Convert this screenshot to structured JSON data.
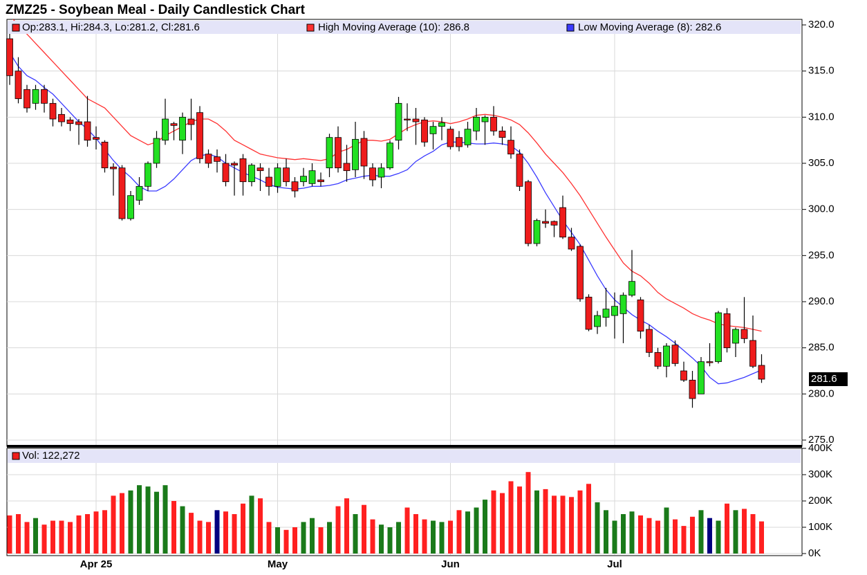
{
  "chart_data": [
    {
      "type": "candlestick",
      "title": "ZMZ25 - Soybean Meal - Daily Candlestick Chart",
      "ohlc_label": "Op:283.1, Hi:284.3, Lo:281.2, Cl:281.6",
      "last_price_label": "281.6",
      "up_color": "#22e022",
      "down_color": "#ee1c1c",
      "open": [
        318.5,
        315,
        313,
        311.5,
        313,
        311.5,
        310.3,
        309.7,
        309.5,
        309.5,
        307.8,
        307.3,
        304.6,
        304.5,
        299,
        301,
        302.5,
        305,
        307.5,
        309.3,
        307.5,
        309.8,
        310.5,
        306,
        305.7,
        305,
        305,
        305.5,
        303,
        304.5,
        303.5,
        302.5,
        304.5,
        303,
        303,
        302.8,
        303.2,
        304.5,
        307.8,
        305,
        304.3,
        307.7,
        304.5,
        303.5,
        304.5,
        307.5,
        309.8,
        309.8,
        309.7,
        308.2,
        309,
        308.7,
        307.8,
        307,
        308.5,
        309.5,
        310,
        308.5,
        307.5,
        306,
        303,
        296.3,
        298.7,
        298.7,
        300.2,
        297,
        296,
        290.5,
        287.3,
        288.3,
        288.5,
        288.7,
        290.7,
        290.2,
        287,
        284.5,
        283,
        285.3,
        282.5,
        281.5,
        280,
        283.5,
        283.5,
        288.7,
        285.5,
        287,
        285.8,
        283.1
      ],
      "high": [
        320.2,
        316.5,
        313.5,
        313.5,
        313.5,
        312,
        311,
        310,
        309.8,
        312.3,
        309,
        307.5,
        305,
        304.8,
        302,
        303.5,
        305.2,
        308.5,
        312,
        309.5,
        310.5,
        312,
        311.2,
        306.5,
        306.5,
        306,
        305.2,
        306,
        305,
        305,
        304.5,
        305,
        305.5,
        303.5,
        304.5,
        305,
        304,
        308.2,
        309,
        307,
        309.5,
        308.5,
        305,
        305,
        307.5,
        312.2,
        311.5,
        311,
        310,
        309.5,
        310,
        309,
        308.5,
        309.5,
        311,
        310.2,
        311.2,
        309,
        309,
        306.5,
        303.2,
        299,
        300,
        298.8,
        301.5,
        298,
        296.2,
        290.8,
        289,
        291.5,
        291,
        291,
        295.6,
        290.5,
        287.5,
        285,
        285.5,
        285.8,
        283.5,
        282.5,
        284,
        285.5,
        289,
        289.3,
        287.2,
        290.5,
        288.5,
        284.3
      ],
      "low": [
        313.5,
        311.5,
        310.5,
        310.8,
        310.5,
        309,
        309,
        308.5,
        307,
        306.8,
        306.5,
        304,
        301.5,
        298.8,
        298.8,
        300.5,
        302,
        304.5,
        307,
        307.5,
        306,
        307.5,
        305,
        304.5,
        304,
        302.5,
        301.5,
        301.5,
        302.5,
        302,
        301.5,
        301.8,
        302.5,
        301.3,
        302.5,
        302.5,
        302.5,
        303.5,
        304,
        303,
        303.5,
        303.3,
        302.5,
        302.3,
        304.3,
        306.5,
        308.5,
        307,
        306.8,
        306.5,
        307.5,
        306.5,
        306.3,
        306.7,
        307.5,
        307,
        308,
        307,
        305.5,
        302,
        296,
        296,
        298,
        297,
        296.8,
        295.5,
        290,
        286.8,
        286.5,
        287.3,
        286,
        285.5,
        290.5,
        286,
        284,
        282.7,
        281.8,
        283,
        281.3,
        278.5,
        280,
        283,
        283.3,
        284.5,
        284,
        285.5,
        282.8,
        281.2
      ],
      "close": [
        314.5,
        312,
        311,
        313,
        311.5,
        309.8,
        309.5,
        309.3,
        309.2,
        307.5,
        307.6,
        304.5,
        304.4,
        299,
        301.5,
        302.5,
        305,
        307.7,
        309.8,
        309.1,
        310,
        309.2,
        305.5,
        305,
        305.2,
        303,
        304.8,
        303,
        304.8,
        304.2,
        302.5,
        304.5,
        303,
        302,
        303.6,
        304.2,
        303,
        307.8,
        304.5,
        304.2,
        307.6,
        304.7,
        303.2,
        304.5,
        307.2,
        311.5,
        309.7,
        309.5,
        307.3,
        309,
        309.4,
        306.8,
        306.8,
        308.7,
        310,
        310,
        308.5,
        307.8,
        306,
        302.5,
        296.3,
        298.8,
        298.5,
        298.3,
        297,
        295.7,
        290.3,
        287,
        288.5,
        289.2,
        289.5,
        290.7,
        292.2,
        286.8,
        284.5,
        283,
        285.2,
        283.3,
        281.5,
        279.5,
        283.5,
        283.4,
        288.8,
        285,
        287,
        286,
        283,
        281.6
      ],
      "series": [
        {
          "name": "High Moving Average (10): 286.8",
          "color": "#ff3030",
          "values": [
            321,
            320,
            319,
            318,
            317,
            316,
            315,
            314,
            313,
            312,
            311.5,
            311,
            310,
            309,
            308,
            307.5,
            307,
            307.3,
            308,
            308.5,
            309,
            309.5,
            309.8,
            309.8,
            309.3,
            308.5,
            307.5,
            307,
            306.5,
            306,
            305.8,
            305.6,
            305.5,
            305.4,
            305.5,
            305.4,
            305.3,
            305.5,
            306.2,
            306.5,
            307,
            307.5,
            307.5,
            307.4,
            307.6,
            308.2,
            308.8,
            309.2,
            309.5,
            309.6,
            309.5,
            309.3,
            309.5,
            309.8,
            310.2,
            310.3,
            310.2,
            310,
            309.7,
            309.2,
            308.3,
            307.2,
            306,
            305,
            304,
            302.8,
            301.5,
            300,
            298.5,
            297,
            295.6,
            294.2,
            293.3,
            292.8,
            292,
            291,
            290.3,
            289.8,
            289.3,
            288.7,
            288.3,
            288,
            287.6,
            287.4,
            287.3,
            287.2,
            287,
            286.8
          ]
        },
        {
          "name": "Low Moving Average (8): 282.6",
          "color": "#3a3aff",
          "values": [
            317,
            315.5,
            314.5,
            314,
            313.2,
            312.5,
            311.5,
            310.5,
            309.5,
            308.7,
            307.7,
            306.5,
            305.3,
            304.3,
            303.5,
            302.5,
            302,
            302,
            302.5,
            303.3,
            304.3,
            305.3,
            305.8,
            306,
            305.7,
            305,
            304.5,
            304,
            303.6,
            303.2,
            302.7,
            302.4,
            302.3,
            302.2,
            302.3,
            302.5,
            302.5,
            302.6,
            302.8,
            303.2,
            303.4,
            303.6,
            303.7,
            303.6,
            303.6,
            303.9,
            304.3,
            305.2,
            305.8,
            306.3,
            307,
            307.3,
            307.3,
            307.2,
            307.1,
            307.1,
            307.2,
            307.1,
            306.9,
            306.2,
            305,
            303.5,
            301.8,
            300.3,
            298.8,
            297.5,
            296.2,
            294.5,
            292.8,
            291.3,
            290.2,
            289.4,
            288.6,
            288,
            287.5,
            286.8,
            286.2,
            285.5,
            284.7,
            283.9,
            283,
            281.8,
            281.1,
            281.2,
            281.5,
            281.8,
            282.2,
            282.6
          ]
        }
      ],
      "ylim": [
        275,
        320
      ],
      "yticks": [
        {
          "value": 275,
          "label": "275.0"
        },
        {
          "value": 280,
          "label": "280.0"
        },
        {
          "value": 285,
          "label": "285.0"
        },
        {
          "value": 290,
          "label": "290.0"
        },
        {
          "value": 295,
          "label": "295.0"
        },
        {
          "value": 300,
          "label": "300.0"
        },
        {
          "value": 305,
          "label": "305.0"
        },
        {
          "value": 310,
          "label": "310.0"
        },
        {
          "value": 315,
          "label": "315.0"
        },
        {
          "value": 320,
          "label": "320.0"
        }
      ],
      "grid": true
    },
    {
      "type": "bar",
      "legend": "Vol: 122,272",
      "legend_color": "#ee1c1c",
      "categories": [
        null,
        null,
        null,
        null,
        null,
        null,
        null,
        null,
        null,
        null,
        "Apr 25",
        null,
        null,
        null,
        null,
        null,
        null,
        null,
        null,
        null,
        null,
        null,
        null,
        null,
        null,
        null,
        null,
        null,
        null,
        null,
        null,
        "May",
        null,
        null,
        null,
        null,
        null,
        null,
        null,
        null,
        null,
        null,
        null,
        null,
        null,
        null,
        null,
        null,
        null,
        null,
        null,
        "Jun",
        null,
        null,
        null,
        null,
        null,
        null,
        null,
        null,
        null,
        null,
        null,
        null,
        null,
        null,
        null,
        null,
        null,
        null,
        "Jul",
        null,
        null,
        null,
        null,
        null,
        null,
        null,
        null,
        null,
        null,
        null,
        null,
        null,
        null,
        null,
        null,
        null
      ],
      "values": [
        145,
        150,
        120,
        135,
        110,
        125,
        125,
        120,
        145,
        150,
        160,
        165,
        220,
        230,
        240,
        260,
        255,
        235,
        260,
        200,
        180,
        155,
        125,
        120,
        165,
        160,
        150,
        190,
        220,
        210,
        120,
        100,
        90,
        100,
        120,
        135,
        100,
        120,
        180,
        210,
        150,
        185,
        130,
        110,
        100,
        120,
        175,
        150,
        130,
        125,
        120,
        125,
        165,
        160,
        175,
        205,
        240,
        230,
        275,
        255,
        310,
        240,
        245,
        220,
        220,
        215,
        240,
        265,
        195,
        165,
        125,
        150,
        160,
        145,
        135,
        125,
        175,
        130,
        105,
        140,
        165,
        135,
        125,
        190,
        165,
        170,
        150,
        122.272
      ],
      "colors": [
        "#ff2020",
        "#ff2020",
        "#ff2020",
        "#1a7a1a",
        "#ff2020",
        "#ff2020",
        "#ff2020",
        "#ff2020",
        "#ff2020",
        "#ff2020",
        "#ff2020",
        "#ff2020",
        "#ff2020",
        "#ff2020",
        "#1a7a1a",
        "#1a7a1a",
        "#1a7a1a",
        "#1a7a1a",
        "#1a7a1a",
        "#ff2020",
        "#1a7a1a",
        "#ff2020",
        "#ff2020",
        "#ff2020",
        "#000080",
        "#ff2020",
        "#ff2020",
        "#ff2020",
        "#1a7a1a",
        "#ff2020",
        "#ff2020",
        "#1a7a1a",
        "#ff2020",
        "#ff2020",
        "#1a7a1a",
        "#1a7a1a",
        "#ff2020",
        "#1a7a1a",
        "#ff2020",
        "#ff2020",
        "#1a7a1a",
        "#ff2020",
        "#ff2020",
        "#1a7a1a",
        "#1a7a1a",
        "#1a7a1a",
        "#ff2020",
        "#ff2020",
        "#ff2020",
        "#1a7a1a",
        "#1a7a1a",
        "#ff2020",
        "#ff2020",
        "#1a7a1a",
        "#1a7a1a",
        "#1a7a1a",
        "#ff2020",
        "#ff2020",
        "#ff2020",
        "#ff2020",
        "#ff2020",
        "#1a7a1a",
        "#ff2020",
        "#ff2020",
        "#ff2020",
        "#ff2020",
        "#ff2020",
        "#ff2020",
        "#1a7a1a",
        "#1a7a1a",
        "#1a7a1a",
        "#1a7a1a",
        "#1a7a1a",
        "#ff2020",
        "#ff2020",
        "#ff2020",
        "#1a7a1a",
        "#ff2020",
        "#ff2020",
        "#ff2020",
        "#1a7a1a",
        "#000080",
        "#1a7a1a",
        "#ff2020",
        "#1a7a1a",
        "#ff2020",
        "#ff2020",
        "#ff2020"
      ],
      "ylim": [
        0,
        400
      ],
      "yticks": [
        {
          "value": 0,
          "label": "0K"
        },
        {
          "value": 100,
          "label": "100K"
        },
        {
          "value": 200,
          "label": "200K"
        },
        {
          "value": 300,
          "label": "300K"
        },
        {
          "value": 400,
          "label": "400K"
        }
      ],
      "grid": true
    }
  ]
}
